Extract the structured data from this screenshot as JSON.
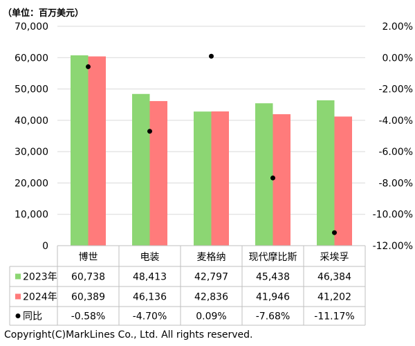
{
  "unit_label": "（单位：百万美元）",
  "copyright": "Copyright(C)MarkLines Co., Ltd. All rights reserved.",
  "colors": {
    "series_2023": "#8cd673",
    "series_2024": "#ff7b7b",
    "yoy_marker": "#000000",
    "axis": "#bfbfbf",
    "grid": "#d9d9d9"
  },
  "chart_data": {
    "type": "bar",
    "categories": [
      "博世",
      "电装",
      "麦格纳",
      "现代摩比斯",
      "采埃孚"
    ],
    "series": [
      {
        "name": "2023年",
        "values": [
          60738,
          48413,
          42797,
          45438,
          46384
        ]
      },
      {
        "name": "2024年",
        "values": [
          60389,
          46136,
          42836,
          41946,
          41202
        ]
      }
    ],
    "secondary_series": {
      "name": "同比",
      "type": "scatter",
      "values": [
        -0.58,
        -4.7,
        0.09,
        -7.68,
        -11.17
      ]
    },
    "ylim": [
      0,
      70000
    ],
    "yticks": [
      "0",
      "10,000",
      "20,000",
      "30,000",
      "40,000",
      "50,000",
      "60,000",
      "70,000"
    ],
    "y2lim": [
      -12,
      2
    ],
    "y2ticks": [
      "-12.00%",
      "-10.00%",
      "-8.00%",
      "-6.00%",
      "-4.00%",
      "-2.00%",
      "0.00%",
      "2.00%"
    ],
    "table": {
      "rows": [
        {
          "label": "2023年",
          "cells": [
            "60,738",
            "48,413",
            "42,797",
            "45,438",
            "46,384"
          ]
        },
        {
          "label": "2024年",
          "cells": [
            "60,389",
            "46,136",
            "42,836",
            "41,946",
            "41,202"
          ]
        },
        {
          "label": "同比",
          "cells": [
            "-0.58%",
            "-4.70%",
            "0.09%",
            "-7.68%",
            "-11.17%"
          ]
        }
      ]
    },
    "grid": true,
    "legend": "data-table"
  }
}
